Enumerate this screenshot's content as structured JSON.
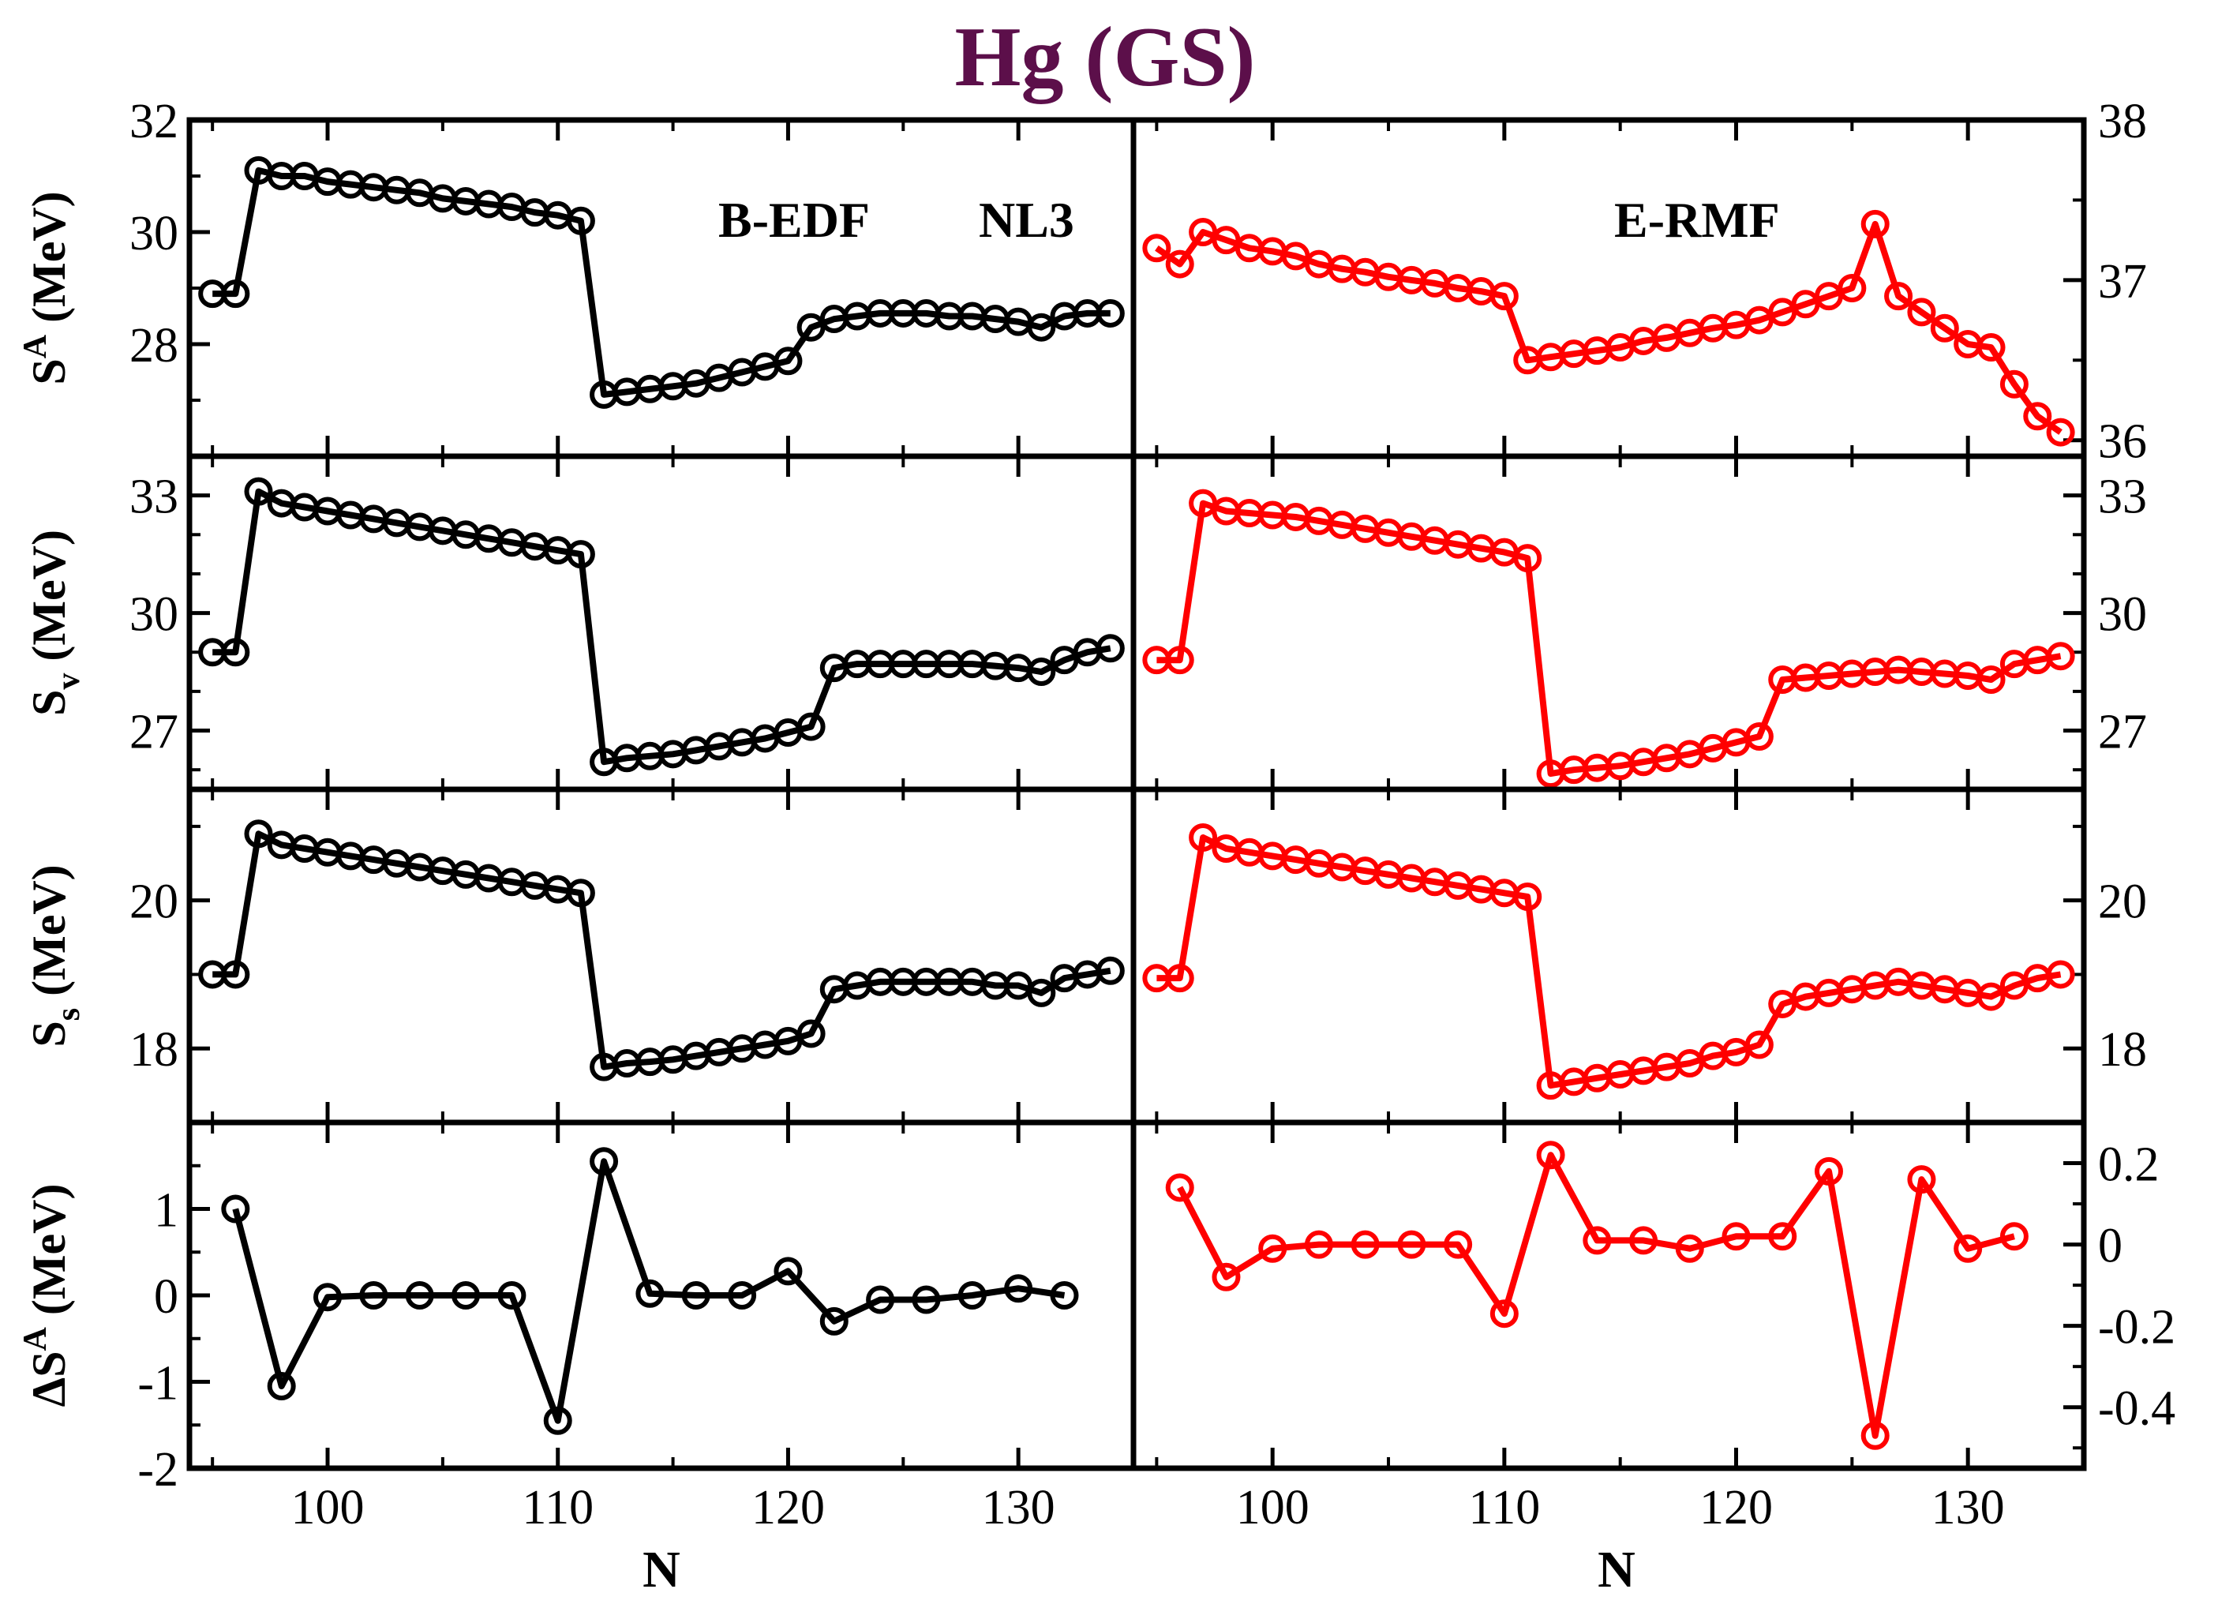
{
  "title": "Hg (GS)",
  "colors": {
    "title": "#5c0f4a",
    "bedf": "#000000",
    "ermf": "#ff0000",
    "frame": "#000000"
  },
  "chart_data": {
    "type": "line",
    "xlabel": "N",
    "xlim": [
      94,
      135
    ],
    "xticks": [
      100,
      110,
      120,
      130
    ],
    "legend": {
      "left_labels": [
        "B-EDF",
        "NL3"
      ],
      "right_label": "E-RMF"
    },
    "rows": [
      {
        "name": "SA",
        "ylabel": "S",
        "ylabel_sup": "A",
        "ylabel_sub": "",
        "ylabel_unit": "(MeV)",
        "left": {
          "ylim": [
            26,
            32
          ],
          "yticks": [
            28,
            30,
            32
          ],
          "minor": [
            27,
            29,
            31
          ],
          "series": {
            "name": "B-EDF / NL3",
            "x": [
              95,
              96,
              97,
              98,
              99,
              100,
              101,
              102,
              103,
              104,
              105,
              106,
              107,
              108,
              109,
              110,
              111,
              112,
              113,
              114,
              115,
              116,
              117,
              118,
              119,
              120,
              121,
              122,
              123,
              124,
              125,
              126,
              127,
              128,
              129,
              130,
              131,
              132,
              133,
              134
            ],
            "y": [
              28.9,
              28.9,
              31.1,
              31.0,
              31.0,
              30.9,
              30.85,
              30.8,
              30.75,
              30.7,
              30.6,
              30.55,
              30.5,
              30.45,
              30.35,
              30.3,
              30.2,
              27.1,
              27.15,
              27.2,
              27.25,
              27.3,
              27.4,
              27.5,
              27.6,
              27.7,
              28.3,
              28.45,
              28.5,
              28.55,
              28.55,
              28.55,
              28.5,
              28.5,
              28.45,
              28.4,
              28.3,
              28.5,
              28.55,
              28.55
            ]
          }
        },
        "right": {
          "ylim": [
            35.9,
            38
          ],
          "yticks": [
            36,
            37,
            38
          ],
          "yticklabels": [
            "36",
            "37",
            "38"
          ],
          "minor": [
            36.5,
            37.5
          ],
          "series": {
            "name": "E-RMF",
            "x": [
              95,
              96,
              97,
              98,
              99,
              100,
              101,
              102,
              103,
              104,
              105,
              106,
              107,
              108,
              109,
              110,
              111,
              112,
              113,
              114,
              115,
              116,
              117,
              118,
              119,
              120,
              121,
              122,
              123,
              124,
              125,
              126,
              127,
              128,
              129,
              130,
              131,
              132,
              133,
              134
            ],
            "y": [
              37.2,
              37.1,
              37.3,
              37.25,
              37.2,
              37.18,
              37.15,
              37.1,
              37.07,
              37.05,
              37.02,
              37.0,
              36.98,
              36.95,
              36.93,
              36.9,
              36.5,
              36.52,
              36.54,
              36.56,
              36.58,
              36.62,
              36.64,
              36.67,
              36.7,
              36.72,
              36.75,
              36.8,
              36.85,
              36.9,
              36.95,
              37.35,
              36.9,
              36.8,
              36.7,
              36.6,
              36.58,
              36.35,
              36.15,
              36.05
            ]
          }
        }
      },
      {
        "name": "Sv",
        "ylabel": "S",
        "ylabel_sup": "",
        "ylabel_sub": "v",
        "ylabel_unit": "(MeV)",
        "left": {
          "ylim": [
            25.5,
            34
          ],
          "yticks": [
            27,
            30,
            33
          ],
          "minor": [
            26,
            28,
            29,
            31,
            32
          ],
          "series": {
            "name": "B-EDF / NL3",
            "x": [
              95,
              96,
              97,
              98,
              99,
              100,
              101,
              102,
              103,
              104,
              105,
              106,
              107,
              108,
              109,
              110,
              111,
              112,
              113,
              114,
              115,
              116,
              117,
              118,
              119,
              120,
              121,
              122,
              123,
              124,
              125,
              126,
              127,
              128,
              129,
              130,
              131,
              132,
              133,
              134
            ],
            "y": [
              29.0,
              29.0,
              33.1,
              32.8,
              32.7,
              32.6,
              32.5,
              32.4,
              32.3,
              32.2,
              32.1,
              32.0,
              31.9,
              31.8,
              31.7,
              31.6,
              31.5,
              26.2,
              26.3,
              26.35,
              26.4,
              26.5,
              26.6,
              26.7,
              26.8,
              26.95,
              27.1,
              28.6,
              28.7,
              28.7,
              28.7,
              28.7,
              28.7,
              28.7,
              28.65,
              28.6,
              28.5,
              28.8,
              29.0,
              29.1
            ]
          }
        },
        "right": {
          "ylim": [
            25.5,
            34
          ],
          "yticks": [
            27,
            30,
            33
          ],
          "yticklabels": [
            "27",
            "30",
            "33"
          ],
          "minor": [
            26,
            28,
            29,
            31,
            32
          ],
          "series": {
            "name": "E-RMF",
            "x": [
              95,
              96,
              97,
              98,
              99,
              100,
              101,
              102,
              103,
              104,
              105,
              106,
              107,
              108,
              109,
              110,
              111,
              112,
              113,
              114,
              115,
              116,
              117,
              118,
              119,
              120,
              121,
              122,
              123,
              124,
              125,
              126,
              127,
              128,
              129,
              130,
              131,
              132,
              133,
              134
            ],
            "y": [
              28.8,
              28.8,
              32.8,
              32.6,
              32.55,
              32.5,
              32.45,
              32.35,
              32.25,
              32.15,
              32.05,
              31.95,
              31.85,
              31.75,
              31.65,
              31.55,
              31.4,
              25.9,
              26.0,
              26.05,
              26.1,
              26.2,
              26.3,
              26.4,
              26.55,
              26.7,
              26.85,
              28.3,
              28.35,
              28.4,
              28.45,
              28.5,
              28.55,
              28.5,
              28.45,
              28.4,
              28.3,
              28.7,
              28.8,
              28.9
            ]
          }
        }
      },
      {
        "name": "Ss",
        "ylabel": "S",
        "ylabel_sup": "",
        "ylabel_sub": "s",
        "ylabel_unit": "(MeV)",
        "left": {
          "ylim": [
            17,
            21.5
          ],
          "yticks": [
            18,
            20
          ],
          "minor": [
            19,
            21
          ],
          "series": {
            "name": "B-EDF / NL3",
            "x": [
              95,
              96,
              97,
              98,
              99,
              100,
              101,
              102,
              103,
              104,
              105,
              106,
              107,
              108,
              109,
              110,
              111,
              112,
              113,
              114,
              115,
              116,
              117,
              118,
              119,
              120,
              121,
              122,
              123,
              124,
              125,
              126,
              127,
              128,
              129,
              130,
              131,
              132,
              133,
              134
            ],
            "y": [
              19.0,
              19.0,
              20.9,
              20.75,
              20.7,
              20.65,
              20.6,
              20.55,
              20.5,
              20.45,
              20.4,
              20.35,
              20.3,
              20.25,
              20.2,
              20.15,
              20.1,
              17.75,
              17.8,
              17.82,
              17.85,
              17.9,
              17.95,
              18.0,
              18.05,
              18.1,
              18.2,
              18.8,
              18.85,
              18.9,
              18.9,
              18.9,
              18.9,
              18.9,
              18.85,
              18.85,
              18.75,
              18.95,
              19.0,
              19.05
            ]
          }
        },
        "right": {
          "ylim": [
            17,
            21.5
          ],
          "yticks": [
            18,
            20
          ],
          "yticklabels": [
            "18",
            "20"
          ],
          "minor": [
            19,
            21
          ],
          "series": {
            "name": "E-RMF",
            "x": [
              95,
              96,
              97,
              98,
              99,
              100,
              101,
              102,
              103,
              104,
              105,
              106,
              107,
              108,
              109,
              110,
              111,
              112,
              113,
              114,
              115,
              116,
              117,
              118,
              119,
              120,
              121,
              122,
              123,
              124,
              125,
              126,
              127,
              128,
              129,
              130,
              131,
              132,
              133,
              134
            ],
            "y": [
              18.95,
              18.95,
              20.85,
              20.7,
              20.65,
              20.6,
              20.55,
              20.5,
              20.45,
              20.4,
              20.35,
              20.3,
              20.25,
              20.2,
              20.15,
              20.1,
              20.05,
              17.5,
              17.55,
              17.6,
              17.65,
              17.7,
              17.75,
              17.8,
              17.9,
              17.95,
              18.05,
              18.6,
              18.7,
              18.75,
              18.8,
              18.85,
              18.9,
              18.85,
              18.8,
              18.75,
              18.7,
              18.85,
              18.95,
              19.0
            ]
          }
        }
      },
      {
        "name": "dSA",
        "ylabel": "ΔS",
        "ylabel_sup": "A",
        "ylabel_sub": "",
        "ylabel_unit": "(MeV)",
        "left": {
          "ylim": [
            -2,
            2
          ],
          "yticks": [
            -2,
            -1,
            0,
            1
          ],
          "minor": [
            -1.5,
            -0.5,
            0.5,
            1.5
          ],
          "series": {
            "name": "B-EDF / NL3",
            "x": [
              96,
              98,
              100,
              102,
              104,
              106,
              108,
              110,
              112,
              114,
              116,
              118,
              120,
              122,
              124,
              126,
              128,
              130,
              132
            ],
            "y": [
              1.0,
              -1.05,
              -0.02,
              0.0,
              0.0,
              0.0,
              0.0,
              -1.45,
              1.55,
              0.02,
              0.0,
              0.0,
              0.28,
              -0.3,
              -0.05,
              -0.05,
              0.0,
              0.08,
              0.0
            ]
          }
        },
        "right": {
          "ylim": [
            -0.55,
            0.3
          ],
          "yticks": [
            -0.4,
            -0.2,
            0,
            0.2
          ],
          "yticklabels": [
            "-0.4",
            "-0.2",
            "0",
            "0.2"
          ],
          "minor": [
            -0.5,
            -0.3,
            -0.1,
            0.1
          ],
          "series": {
            "name": "E-RMF",
            "x": [
              96,
              98,
              100,
              102,
              104,
              106,
              108,
              110,
              112,
              114,
              116,
              118,
              120,
              122,
              124,
              126,
              128,
              130,
              132
            ],
            "y": [
              0.14,
              -0.08,
              -0.01,
              0.0,
              0.0,
              0.0,
              0.0,
              -0.17,
              0.22,
              0.01,
              0.01,
              -0.01,
              0.02,
              0.02,
              0.18,
              -0.47,
              0.16,
              -0.01,
              0.02
            ]
          }
        }
      }
    ]
  }
}
